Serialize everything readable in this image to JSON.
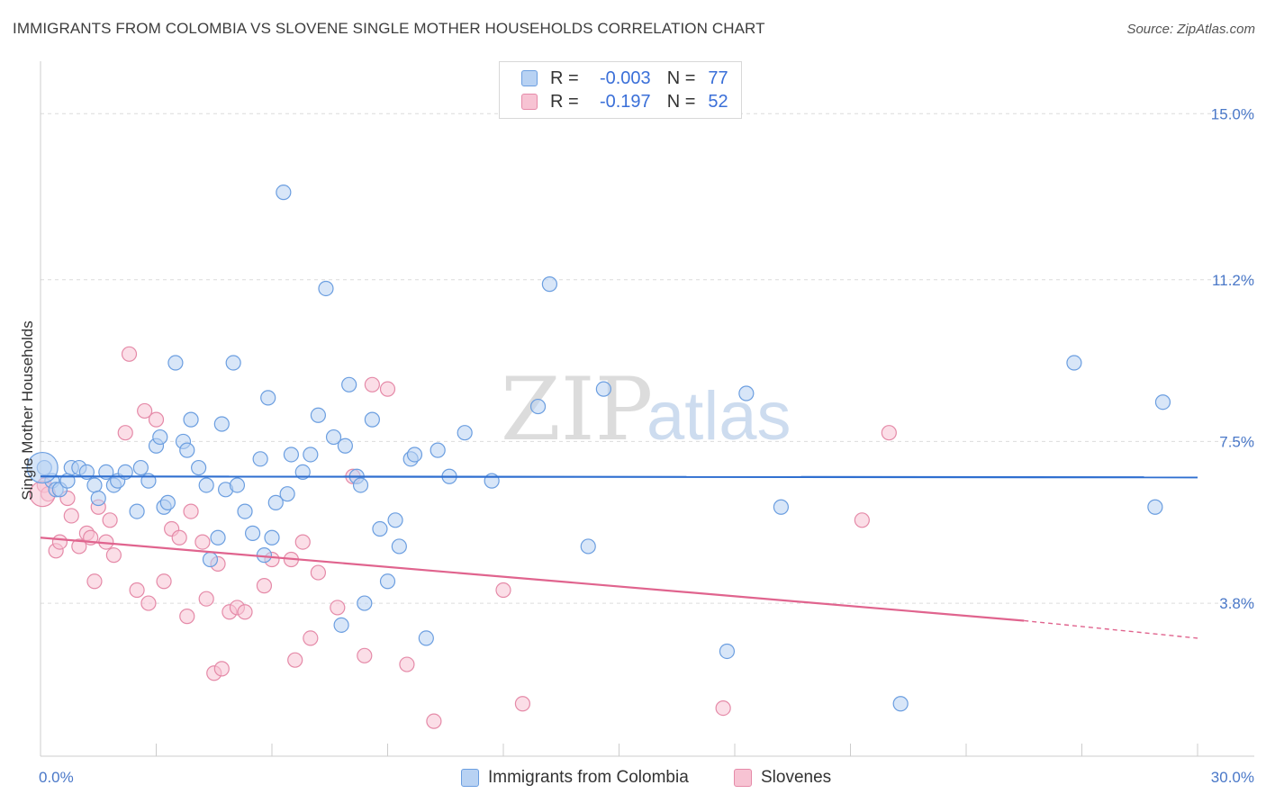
{
  "header": {
    "title": "IMMIGRANTS FROM COLOMBIA VS SLOVENE SINGLE MOTHER HOUSEHOLDS CORRELATION CHART",
    "source": "Source: ZipAtlas.com"
  },
  "watermark": {
    "zip": "ZIP",
    "atlas": "atlas"
  },
  "legend": {
    "rows": [
      {
        "r_label": "R =",
        "r_value": "-0.003",
        "n_label": "N =",
        "n_value": "77",
        "color": "#a9c8f0"
      },
      {
        "r_label": "R =",
        "r_value": "-0.197",
        "n_label": "N =",
        "n_value": "52",
        "color": "#f5b3c8"
      }
    ]
  },
  "bottom_legend": {
    "items": [
      {
        "label": "Immigrants from Colombia",
        "color": "#a9c8f0"
      },
      {
        "label": "Slovenes",
        "color": "#f5b3c8"
      }
    ]
  },
  "chart_data": {
    "type": "scatter",
    "title": "IMMIGRANTS FROM COLOMBIA VS SLOVENE SINGLE MOTHER HOUSEHOLDS CORRELATION CHART",
    "xlabel": "",
    "ylabel": "Single Mother Households",
    "xlim": [
      0,
      30
    ],
    "ylim": [
      0.3,
      16.2
    ],
    "x_tick_labels": [
      "0.0%",
      "30.0%"
    ],
    "y_ticks": [
      3.8,
      7.5,
      11.2,
      15.0
    ],
    "y_tick_labels": [
      "3.8%",
      "7.5%",
      "11.2%",
      "15.0%"
    ],
    "grid": "horizontal dashed",
    "series": [
      {
        "name": "Immigrants from Colombia",
        "color": "#6b9ee0",
        "fill": "#b8d2f3",
        "trend": {
          "x0": 0,
          "y0": 6.7,
          "x1": 30,
          "y1": 6.68
        },
        "points": [
          [
            0.1,
            6.9
          ],
          [
            0.3,
            6.6
          ],
          [
            0.4,
            6.4
          ],
          [
            0.5,
            6.4
          ],
          [
            0.7,
            6.6
          ],
          [
            0.8,
            6.9
          ],
          [
            1.0,
            6.9
          ],
          [
            1.2,
            6.8
          ],
          [
            1.4,
            6.5
          ],
          [
            1.5,
            6.2
          ],
          [
            1.7,
            6.8
          ],
          [
            1.9,
            6.5
          ],
          [
            2.0,
            6.6
          ],
          [
            2.2,
            6.8
          ],
          [
            2.5,
            5.9
          ],
          [
            2.6,
            6.9
          ],
          [
            2.8,
            6.6
          ],
          [
            3.0,
            7.4
          ],
          [
            3.1,
            7.6
          ],
          [
            3.2,
            6.0
          ],
          [
            3.3,
            6.1
          ],
          [
            3.5,
            9.3
          ],
          [
            3.7,
            7.5
          ],
          [
            3.8,
            7.3
          ],
          [
            3.9,
            8.0
          ],
          [
            4.1,
            6.9
          ],
          [
            4.3,
            6.5
          ],
          [
            4.4,
            4.8
          ],
          [
            4.6,
            5.3
          ],
          [
            4.7,
            7.9
          ],
          [
            4.8,
            6.4
          ],
          [
            5.0,
            9.3
          ],
          [
            5.1,
            6.5
          ],
          [
            5.3,
            5.9
          ],
          [
            5.5,
            5.4
          ],
          [
            5.7,
            7.1
          ],
          [
            5.8,
            4.9
          ],
          [
            5.9,
            8.5
          ],
          [
            6.0,
            5.3
          ],
          [
            6.1,
            6.1
          ],
          [
            6.3,
            13.2
          ],
          [
            6.4,
            6.3
          ],
          [
            6.5,
            7.2
          ],
          [
            6.8,
            6.8
          ],
          [
            7.0,
            7.2
          ],
          [
            7.2,
            8.1
          ],
          [
            7.4,
            11.0
          ],
          [
            7.6,
            7.6
          ],
          [
            7.8,
            3.3
          ],
          [
            7.9,
            7.4
          ],
          [
            8.0,
            8.8
          ],
          [
            8.2,
            6.7
          ],
          [
            8.3,
            6.5
          ],
          [
            8.4,
            3.8
          ],
          [
            8.6,
            8.0
          ],
          [
            8.8,
            5.5
          ],
          [
            9.0,
            4.3
          ],
          [
            9.2,
            5.7
          ],
          [
            9.3,
            5.1
          ],
          [
            9.6,
            7.1
          ],
          [
            9.7,
            7.2
          ],
          [
            10.0,
            3.0
          ],
          [
            10.3,
            7.3
          ],
          [
            10.6,
            6.7
          ],
          [
            11.0,
            7.7
          ],
          [
            11.7,
            6.6
          ],
          [
            12.9,
            8.3
          ],
          [
            13.2,
            11.1
          ],
          [
            14.2,
            5.1
          ],
          [
            14.6,
            8.7
          ],
          [
            17.8,
            2.7
          ],
          [
            18.3,
            8.6
          ],
          [
            19.2,
            6.0
          ],
          [
            22.3,
            1.5
          ],
          [
            26.8,
            9.3
          ],
          [
            28.9,
            6.0
          ],
          [
            29.1,
            8.4
          ]
        ]
      },
      {
        "name": "Slovenes",
        "color": "#e58aa8",
        "fill": "#f7c3d3",
        "trend": {
          "x0": 0,
          "y0": 5.3,
          "x1": 25.5,
          "y1": 3.4,
          "dash_x1": 30,
          "dash_y1": 3.0
        },
        "points": [
          [
            0.1,
            6.5
          ],
          [
            0.4,
            5.0
          ],
          [
            0.5,
            5.2
          ],
          [
            0.7,
            6.2
          ],
          [
            0.8,
            5.8
          ],
          [
            1.0,
            5.1
          ],
          [
            1.2,
            5.4
          ],
          [
            1.3,
            5.3
          ],
          [
            1.4,
            4.3
          ],
          [
            1.5,
            6.0
          ],
          [
            1.7,
            5.2
          ],
          [
            1.8,
            5.7
          ],
          [
            1.9,
            4.9
          ],
          [
            2.2,
            7.7
          ],
          [
            2.3,
            9.5
          ],
          [
            2.5,
            4.1
          ],
          [
            2.7,
            8.2
          ],
          [
            2.8,
            3.8
          ],
          [
            3.0,
            8.0
          ],
          [
            3.2,
            4.3
          ],
          [
            3.4,
            5.5
          ],
          [
            3.6,
            5.3
          ],
          [
            3.8,
            3.5
          ],
          [
            3.9,
            5.9
          ],
          [
            4.2,
            5.2
          ],
          [
            4.3,
            3.9
          ],
          [
            4.5,
            2.2
          ],
          [
            4.6,
            4.7
          ],
          [
            4.7,
            2.3
          ],
          [
            4.9,
            3.6
          ],
          [
            5.1,
            3.7
          ],
          [
            5.3,
            3.6
          ],
          [
            5.8,
            4.2
          ],
          [
            6.0,
            4.8
          ],
          [
            6.5,
            4.8
          ],
          [
            6.6,
            2.5
          ],
          [
            6.8,
            5.2
          ],
          [
            7.0,
            3.0
          ],
          [
            7.2,
            4.5
          ],
          [
            7.7,
            3.7
          ],
          [
            8.1,
            6.7
          ],
          [
            8.4,
            2.6
          ],
          [
            8.6,
            8.8
          ],
          [
            9.0,
            8.7
          ],
          [
            9.5,
            2.4
          ],
          [
            10.2,
            1.1
          ],
          [
            12.0,
            4.1
          ],
          [
            12.5,
            1.5
          ],
          [
            17.7,
            1.4
          ],
          [
            21.3,
            5.7
          ],
          [
            22.0,
            7.7
          ],
          [
            0.2,
            6.3
          ]
        ]
      }
    ]
  }
}
